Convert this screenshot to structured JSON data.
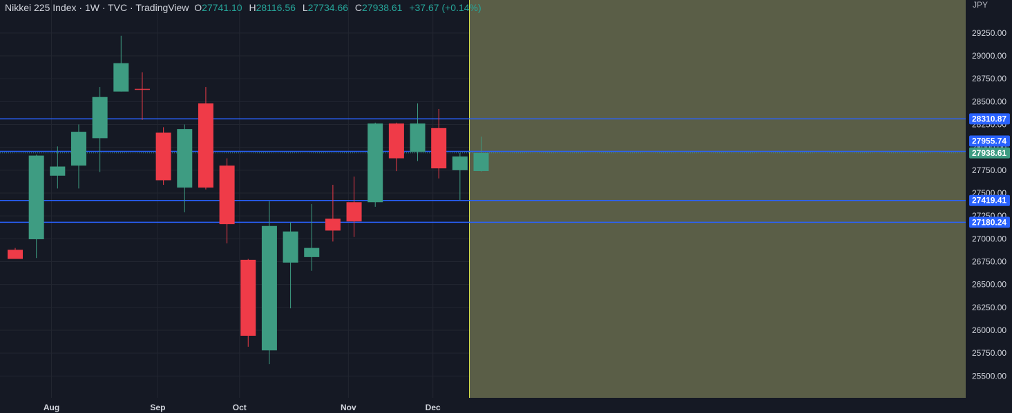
{
  "header": {
    "title": "Nikkei 225 Index · 1W · TVC · TradingView",
    "o_label": "O",
    "o_value": "27741.10",
    "h_label": "H",
    "h_value": "28116.56",
    "l_label": "L",
    "l_value": "27734.66",
    "c_label": "C",
    "c_value": "27938.61",
    "change": "+37.67 (+0.14%)"
  },
  "price_axis": {
    "currency": "JPY"
  },
  "colors": {
    "background": "#151924",
    "grid": "#222631",
    "up": "#26a69a",
    "up_body": "#3e9c82",
    "down": "#ef3b48",
    "hline": "#2962ff",
    "highlight": "#5a5e47",
    "highlight_edge": "#d6e24a",
    "last_price": "#3e9c82"
  },
  "chart_data": {
    "type": "candlestick",
    "title": "Nikkei 225 Index · 1W · TVC · TradingView",
    "ylabel": "JPY",
    "ylim": [
      25300,
      29460
    ],
    "yticks": [
      "29250.00",
      "29000.00",
      "28750.00",
      "28500.00",
      "28250.00",
      "28000.00",
      "27750.00",
      "27500.00",
      "27250.00",
      "27000.00",
      "26750.00",
      "26500.00",
      "26250.00",
      "26000.00",
      "25750.00",
      "25500.00"
    ],
    "xticks": [
      {
        "label": "Aug",
        "index": 2.43
      },
      {
        "label": "Sep",
        "index": 7.45
      },
      {
        "label": "Oct",
        "index": 11.31
      },
      {
        "label": "Nov",
        "index": 16.45
      },
      {
        "label": "Dec",
        "index": 20.44
      }
    ],
    "candles": [
      {
        "o": 26880,
        "h": 26900,
        "l": 26780,
        "c": 26780
      },
      {
        "o": 26995,
        "h": 27920,
        "l": 26790,
        "c": 27910
      },
      {
        "o": 27690,
        "h": 28010,
        "l": 27550,
        "c": 27790
      },
      {
        "o": 27800,
        "h": 28250,
        "l": 27550,
        "c": 28170
      },
      {
        "o": 28100,
        "h": 28660,
        "l": 27730,
        "c": 28550
      },
      {
        "o": 28610,
        "h": 29220,
        "l": 28610,
        "c": 28920
      },
      {
        "o": 28640,
        "h": 28820,
        "l": 28300,
        "c": 28630
      },
      {
        "o": 28160,
        "h": 28220,
        "l": 27590,
        "c": 27640
      },
      {
        "o": 27560,
        "h": 28250,
        "l": 27290,
        "c": 28200
      },
      {
        "o": 28480,
        "h": 28660,
        "l": 27540,
        "c": 27560
      },
      {
        "o": 27800,
        "h": 27880,
        "l": 26950,
        "c": 27160
      },
      {
        "o": 26770,
        "h": 26780,
        "l": 25820,
        "c": 25940
      },
      {
        "o": 25780,
        "h": 27410,
        "l": 25630,
        "c": 27140
      },
      {
        "o": 26740,
        "h": 27180,
        "l": 26240,
        "c": 27080
      },
      {
        "o": 26800,
        "h": 27380,
        "l": 26650,
        "c": 26900
      },
      {
        "o": 27220,
        "h": 27590,
        "l": 26970,
        "c": 27090
      },
      {
        "o": 27400,
        "h": 27680,
        "l": 27020,
        "c": 27190
      },
      {
        "o": 27400,
        "h": 28270,
        "l": 27350,
        "c": 28260
      },
      {
        "o": 28260,
        "h": 28270,
        "l": 27740,
        "c": 27880
      },
      {
        "o": 27950,
        "h": 28480,
        "l": 27850,
        "c": 28260
      },
      {
        "o": 28210,
        "h": 28420,
        "l": 27660,
        "c": 27770
      },
      {
        "o": 27750,
        "h": 27940,
        "l": 27420,
        "c": 27900
      },
      {
        "o": 27741.1,
        "h": 28116.56,
        "l": 27734.66,
        "c": 27938.61
      }
    ],
    "horizontal_lines": [
      {
        "value": 28310.87,
        "label": "28310.87"
      },
      {
        "value": 27955.74,
        "label": "27955.74"
      },
      {
        "value": 27419.41,
        "label": "27419.41"
      },
      {
        "value": 27180.24,
        "label": "27180.24"
      }
    ],
    "last_price": {
      "value": 27938.61,
      "label": "27938.61"
    }
  }
}
